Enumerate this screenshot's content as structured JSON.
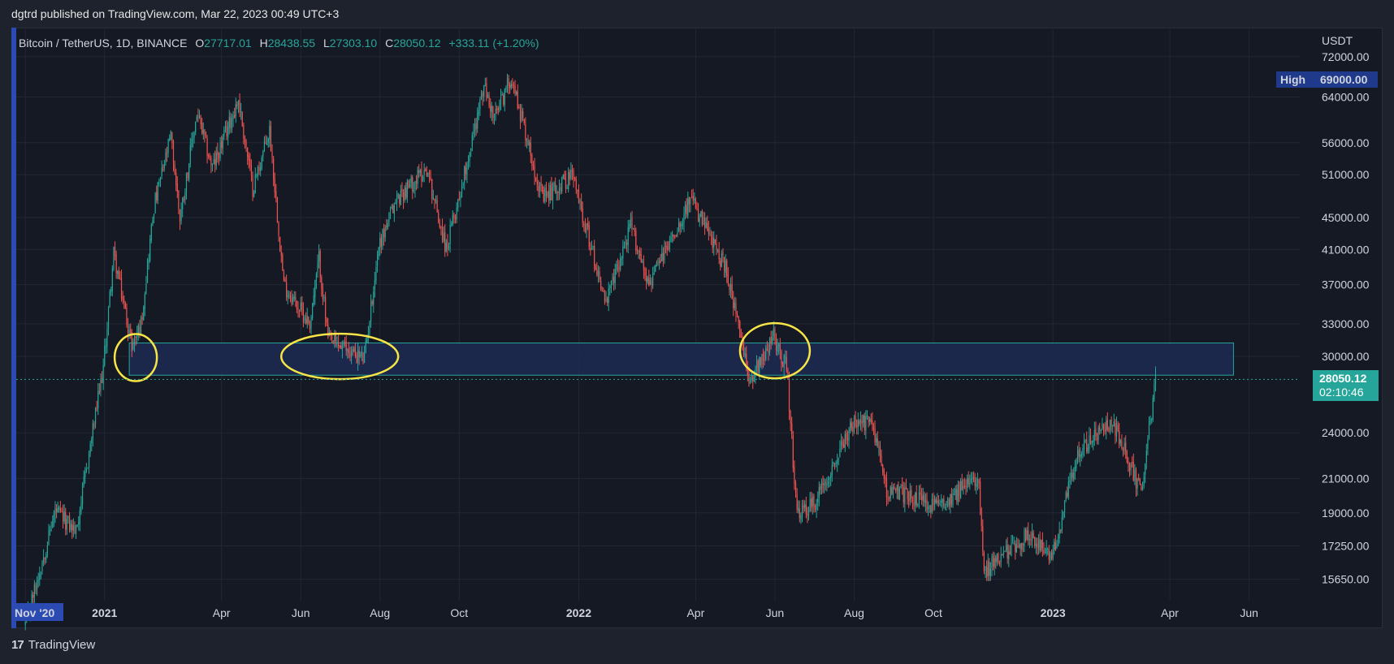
{
  "caption": "dgtrd published on TradingView.com, Mar 22, 2023 00:49 UTC+3",
  "symbol": {
    "name": "Bitcoin / TetherUS, 1D, BINANCE",
    "open_label": "O",
    "open": "27717.01",
    "high_label": "H",
    "high": "28438.55",
    "low_label": "L",
    "low": "27303.10",
    "close_label": "C",
    "close": "28050.12",
    "change": "+333.11 (+1.20%)"
  },
  "price_scale": {
    "currency": "USDT",
    "high_badge_label": "High",
    "high_badge_value": "69000.00",
    "last_price": "28050.12",
    "countdown": "02:10:46"
  },
  "footer": {
    "logo": "17",
    "brand": "TradingView"
  },
  "colors": {
    "up": "#26a69a",
    "down": "#ef5350",
    "zone_fill": "#1c2a52",
    "zone_border": "#26a69a",
    "circle": "#f7e547",
    "accent": "#2b4bb3"
  },
  "chart_data": {
    "type": "candlestick",
    "title": "Bitcoin / TetherUS, 1D, BINANCE",
    "scale": "log",
    "ylim": [
      14700,
      78000
    ],
    "y_ticks": [
      "72000.00",
      "64000.00",
      "56000.00",
      "51000.00",
      "45000.00",
      "41000.00",
      "37000.00",
      "33000.00",
      "30000.00",
      "24000.00",
      "21000.00",
      "19000.00",
      "17250.00",
      "15650.00"
    ],
    "x_ticks": [
      {
        "label": "Nov '20",
        "date": "2020-11-01",
        "bold": true,
        "highlight": true
      },
      {
        "label": "2021",
        "date": "2021-01-01",
        "bold": true
      },
      {
        "label": "Apr",
        "date": "2021-04-01"
      },
      {
        "label": "Jun",
        "date": "2021-06-01"
      },
      {
        "label": "Aug",
        "date": "2021-08-01"
      },
      {
        "label": "Oct",
        "date": "2021-10-01"
      },
      {
        "label": "2022",
        "date": "2022-01-01",
        "bold": true
      },
      {
        "label": "Apr",
        "date": "2022-04-01"
      },
      {
        "label": "Jun",
        "date": "2022-06-01"
      },
      {
        "label": "Aug",
        "date": "2022-08-01"
      },
      {
        "label": "Oct",
        "date": "2022-10-01"
      },
      {
        "label": "2023",
        "date": "2023-01-01",
        "bold": true
      },
      {
        "label": "Apr",
        "date": "2023-04-01"
      },
      {
        "label": "Jun",
        "date": "2023-06-01"
      }
    ],
    "price_path": [
      [
        "2020-11-01",
        13700
      ],
      [
        "2020-11-24",
        19100
      ],
      [
        "2020-12-10",
        18000
      ],
      [
        "2020-12-31",
        29000
      ],
      [
        "2021-01-08",
        40500
      ],
      [
        "2021-01-22",
        31000
      ],
      [
        "2021-01-29",
        33000
      ],
      [
        "2021-02-08",
        46500
      ],
      [
        "2021-02-21",
        57000
      ],
      [
        "2021-02-28",
        45000
      ],
      [
        "2021-03-13",
        61000
      ],
      [
        "2021-03-25",
        52000
      ],
      [
        "2021-04-14",
        63500
      ],
      [
        "2021-04-25",
        49000
      ],
      [
        "2021-05-08",
        58000
      ],
      [
        "2021-05-19",
        37000
      ],
      [
        "2021-06-08",
        33000
      ],
      [
        "2021-06-15",
        40000
      ],
      [
        "2021-06-22",
        31500
      ],
      [
        "2021-07-20",
        29800
      ],
      [
        "2021-07-31",
        41500
      ],
      [
        "2021-08-14",
        47500
      ],
      [
        "2021-09-06",
        52000
      ],
      [
        "2021-09-21",
        41000
      ],
      [
        "2021-10-01",
        48000
      ],
      [
        "2021-10-20",
        66000
      ],
      [
        "2021-10-28",
        60000
      ],
      [
        "2021-11-10",
        68000
      ],
      [
        "2021-12-04",
        47500
      ],
      [
        "2021-12-27",
        51000
      ],
      [
        "2022-01-22",
        35000
      ],
      [
        "2022-02-10",
        44000
      ],
      [
        "2022-02-24",
        37000
      ],
      [
        "2022-03-28",
        47500
      ],
      [
        "2022-04-25",
        38500
      ],
      [
        "2022-05-12",
        28000
      ],
      [
        "2022-05-31",
        31800
      ],
      [
        "2022-06-10",
        29000
      ],
      [
        "2022-06-18",
        18800
      ],
      [
        "2022-07-01",
        19500
      ],
      [
        "2022-07-30",
        24500
      ],
      [
        "2022-08-15",
        24800
      ],
      [
        "2022-08-26",
        20300
      ],
      [
        "2022-09-13",
        20000
      ],
      [
        "2022-10-01",
        19300
      ],
      [
        "2022-10-25",
        20500
      ],
      [
        "2022-11-05",
        21200
      ],
      [
        "2022-11-09",
        16000
      ],
      [
        "2022-12-14",
        17900
      ],
      [
        "2022-12-31",
        16550
      ],
      [
        "2023-01-20",
        22700
      ],
      [
        "2023-02-16",
        24800
      ],
      [
        "2023-03-10",
        20100
      ],
      [
        "2023-03-21",
        28050
      ]
    ],
    "support_zone": {
      "start": "2021-01-20",
      "end": "2023-05-20",
      "low": 28400,
      "high": 31200
    },
    "circled_tests": [
      {
        "date": "2021-01-25",
        "price": 29900
      },
      {
        "date": "2021-07-01",
        "price": 30000
      },
      {
        "date": "2022-06-01",
        "price": 30500
      }
    ],
    "last_price": 28050.12
  }
}
